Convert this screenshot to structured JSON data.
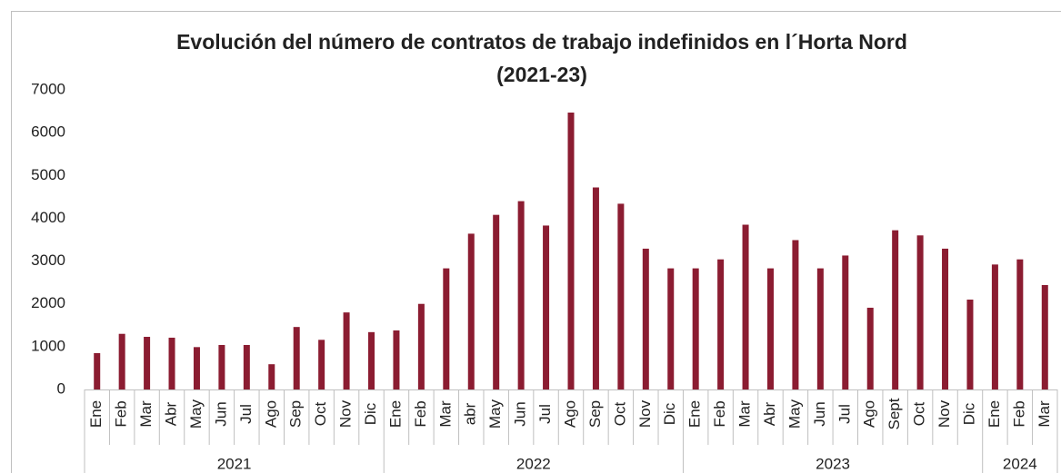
{
  "chart_data": {
    "type": "bar",
    "title": [
      "Evolución del número de contratos de trabajo indefinidos en l´Horta Nord",
      "(2021-23)"
    ],
    "color": "#8b1c31",
    "groups": [
      {
        "name": "2021",
        "categories": [
          "Ene",
          "Feb",
          "Mar",
          "Abr",
          "May",
          "Jun",
          "Jul",
          "Ago",
          "Sep",
          "Oct",
          "Nov",
          "Dic"
        ],
        "values": [
          850,
          1300,
          1230,
          1210,
          990,
          1040,
          1040,
          590,
          1460,
          1160,
          1800,
          1340
        ]
      },
      {
        "name": "2022",
        "categories": [
          "Ene",
          "Feb",
          "Mar",
          "abr",
          "May",
          "Jun",
          "Jul",
          "Ago",
          "Sep",
          "Oct",
          "Nov",
          "Dic"
        ],
        "values": [
          1380,
          2000,
          2830,
          3640,
          4080,
          4400,
          3830,
          6470,
          4720,
          4340,
          3290,
          2830
        ]
      },
      {
        "name": "2023",
        "categories": [
          "Ene",
          "Feb",
          "Mar",
          "Abr",
          "May",
          "Jun",
          "Jul",
          "Ago",
          "Sept",
          "Oct",
          "Nov",
          "Dic"
        ],
        "values": [
          2830,
          3040,
          3850,
          2830,
          3490,
          2830,
          3130,
          1910,
          3720,
          3600,
          3290,
          2100
        ]
      },
      {
        "name": "2024",
        "categories": [
          "Ene",
          "Feb",
          "Mar"
        ],
        "values": [
          2920,
          3040,
          2440
        ]
      }
    ],
    "ylim": [
      0,
      7000
    ],
    "yticks": [
      0,
      1000,
      2000,
      3000,
      4000,
      5000,
      6000,
      7000
    ],
    "grid": false
  }
}
